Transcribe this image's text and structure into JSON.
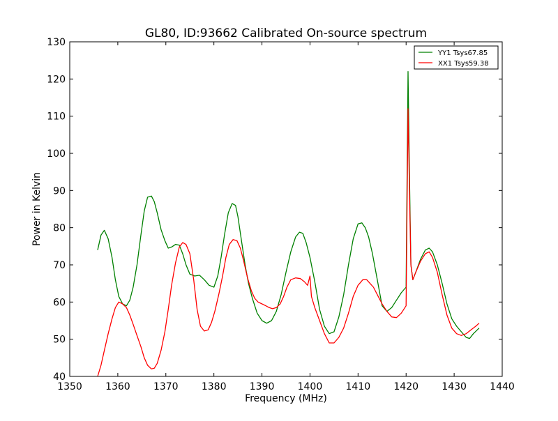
{
  "chart_data": {
    "type": "line",
    "title": "GL80, ID:93662 Calibrated On-source spectrum",
    "xlabel": "Frequency (MHz)",
    "ylabel": "Power in Kelvin",
    "xlim": [
      1350,
      1440
    ],
    "ylim": [
      40,
      130
    ],
    "xticks": [
      1350,
      1360,
      1370,
      1380,
      1390,
      1400,
      1410,
      1420,
      1430,
      1440
    ],
    "yticks": [
      40,
      50,
      60,
      70,
      80,
      90,
      100,
      110,
      120,
      130
    ],
    "grid": false,
    "legend_position": "top-right",
    "series": [
      {
        "name": "YY1 Tsys67.85",
        "color": "#008000",
        "x": [
          1355.8,
          1356.5,
          1357.2,
          1358.0,
          1358.8,
          1359.5,
          1360.2,
          1361.0,
          1361.8,
          1362.5,
          1363.2,
          1364.0,
          1364.8,
          1365.5,
          1366.2,
          1367.0,
          1367.6,
          1368.2,
          1369.0,
          1369.8,
          1370.5,
          1371.2,
          1372.0,
          1372.8,
          1373.5,
          1374.2,
          1375.0,
          1376.0,
          1377.0,
          1378.0,
          1379.0,
          1380.0,
          1380.8,
          1381.5,
          1382.2,
          1383.0,
          1383.8,
          1384.5,
          1385.0,
          1385.8,
          1386.5,
          1387.2,
          1388.0,
          1389.0,
          1390.0,
          1391.0,
          1392.0,
          1393.0,
          1394.0,
          1395.0,
          1396.0,
          1397.0,
          1397.8,
          1398.5,
          1399.2,
          1400.0,
          1401.0,
          1402.0,
          1403.0,
          1404.0,
          1405.0,
          1406.0,
          1407.0,
          1408.0,
          1409.0,
          1410.0,
          1410.8,
          1411.5,
          1412.2,
          1413.0,
          1414.0,
          1415.0,
          1416.0,
          1417.0,
          1418.0,
          1419.0,
          1420.0,
          1420.4,
          1420.7,
          1421.0,
          1421.4,
          1422.0,
          1423.0,
          1424.0,
          1424.8,
          1425.5,
          1426.5,
          1427.5,
          1428.5,
          1429.5,
          1430.5,
          1431.5,
          1432.5,
          1433.2,
          1434.0,
          1435.2
        ],
        "y": [
          74.0,
          78.0,
          79.3,
          77.0,
          72.0,
          66.0,
          61.5,
          59.5,
          59.0,
          60.5,
          64.0,
          70.0,
          78.0,
          84.5,
          88.2,
          88.5,
          87.0,
          84.0,
          79.5,
          76.5,
          74.5,
          74.8,
          75.5,
          75.3,
          73.0,
          70.0,
          67.5,
          67.0,
          67.2,
          66.0,
          64.5,
          64.0,
          67.0,
          72.0,
          78.0,
          84.0,
          86.5,
          86.0,
          83.0,
          76.0,
          70.0,
          65.0,
          61.0,
          57.0,
          55.0,
          54.3,
          55.0,
          57.5,
          62.0,
          68.0,
          73.5,
          77.5,
          78.8,
          78.5,
          76.0,
          72.0,
          65.5,
          58.0,
          53.5,
          51.5,
          52.0,
          56.0,
          62.0,
          70.0,
          77.0,
          81.0,
          81.3,
          80.0,
          77.5,
          73.0,
          66.0,
          59.0,
          57.5,
          58.5,
          60.5,
          62.5,
          64.0,
          122.0,
          95.0,
          70.0,
          66.0,
          68.0,
          71.5,
          74.0,
          74.5,
          73.5,
          70.0,
          65.0,
          59.5,
          55.5,
          53.5,
          52.0,
          50.5,
          50.2,
          51.5,
          53.0
        ]
      },
      {
        "name": "XX1 Tsys59.38",
        "color": "#ff0000",
        "x": [
          1355.8,
          1356.5,
          1357.2,
          1358.0,
          1358.8,
          1359.5,
          1360.2,
          1361.0,
          1361.8,
          1362.5,
          1363.2,
          1364.0,
          1364.8,
          1365.5,
          1366.2,
          1367.0,
          1367.6,
          1368.2,
          1369.0,
          1369.8,
          1370.5,
          1371.2,
          1372.0,
          1372.8,
          1373.5,
          1374.2,
          1375.0,
          1375.8,
          1376.5,
          1377.2,
          1378.0,
          1378.8,
          1379.5,
          1380.2,
          1381.0,
          1381.8,
          1382.5,
          1383.2,
          1384.0,
          1384.8,
          1385.5,
          1386.2,
          1387.0,
          1387.8,
          1388.5,
          1389.2,
          1390.0,
          1390.8,
          1391.5,
          1392.2,
          1393.0,
          1393.8,
          1394.5,
          1395.2,
          1396.0,
          1397.0,
          1398.0,
          1398.8,
          1399.5,
          1400.0,
          1400.3,
          1401.0,
          1402.0,
          1403.0,
          1404.0,
          1405.0,
          1406.0,
          1407.0,
          1408.0,
          1409.0,
          1410.0,
          1411.0,
          1411.8,
          1412.5,
          1413.2,
          1414.0,
          1415.0,
          1416.0,
          1417.0,
          1418.0,
          1419.0,
          1420.0,
          1420.4,
          1420.7,
          1421.0,
          1421.4,
          1422.0,
          1423.0,
          1424.0,
          1424.8,
          1425.5,
          1426.5,
          1427.5,
          1428.5,
          1429.5,
          1430.5,
          1431.5,
          1432.5,
          1433.5,
          1434.5,
          1435.2
        ],
        "y": [
          40.0,
          43.0,
          47.0,
          51.5,
          55.5,
          58.5,
          60.0,
          59.5,
          58.5,
          56.5,
          54.0,
          51.0,
          48.0,
          45.0,
          43.0,
          42.0,
          42.2,
          43.5,
          47.0,
          52.0,
          58.0,
          64.5,
          70.5,
          74.8,
          76.0,
          75.5,
          73.0,
          66.0,
          58.0,
          53.5,
          52.2,
          52.5,
          54.5,
          57.5,
          62.0,
          67.0,
          72.0,
          75.5,
          76.8,
          76.5,
          74.5,
          71.0,
          66.5,
          63.0,
          61.0,
          60.0,
          59.5,
          59.0,
          58.5,
          58.2,
          58.5,
          59.5,
          61.5,
          64.0,
          66.0,
          66.5,
          66.3,
          65.5,
          64.5,
          67.0,
          61.5,
          58.5,
          55.0,
          51.5,
          49.0,
          49.0,
          50.5,
          53.0,
          57.0,
          61.5,
          64.5,
          66.0,
          66.0,
          65.0,
          64.0,
          62.0,
          59.5,
          57.5,
          56.0,
          55.8,
          57.0,
          59.0,
          112.0,
          90.0,
          70.0,
          66.0,
          68.0,
          71.0,
          73.0,
          73.5,
          72.0,
          68.0,
          62.0,
          56.5,
          53.0,
          51.5,
          51.0,
          51.5,
          52.5,
          53.5,
          54.3
        ]
      }
    ]
  }
}
